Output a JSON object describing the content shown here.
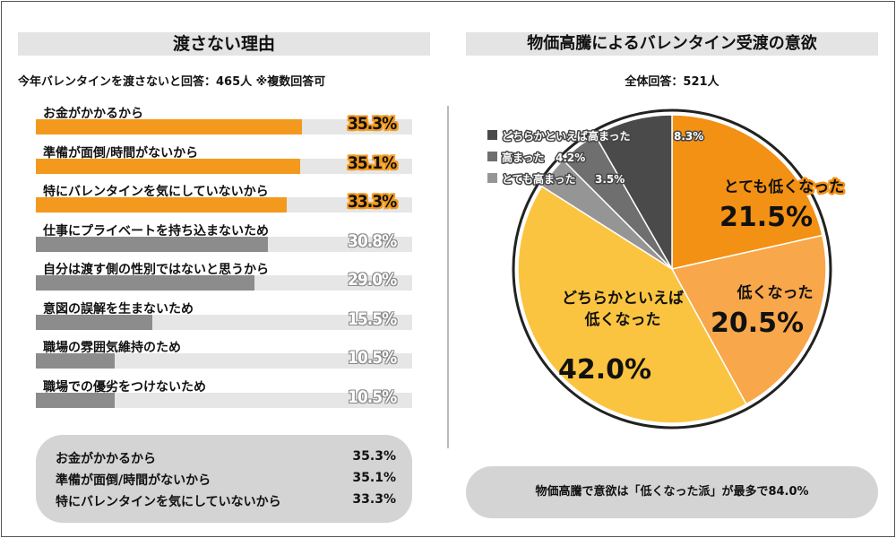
{
  "left": {
    "title": "渡さない理由",
    "subtitle": "今年バレンタインを渡さないと回答：465人 ※複数回答可"
  },
  "right": {
    "title": "物価高騰によるバレンタイン受渡の意欲",
    "subtitle": "全体回答：521人"
  },
  "colors": {
    "orange": "#f39a1e",
    "bar_gray": "#8c8c8c",
    "track": "#e6e6e6",
    "pie_orange": "#f39114",
    "pie_light_orange": "#f8a74a",
    "pie_yellow": "#fbc440",
    "pie_dark": "#4a4a4a",
    "pie_mid": "#6f6f6f",
    "pie_light": "#959595"
  },
  "chart_data": [
    {
      "type": "bar",
      "categories": [
        "お金がかかるから",
        "準備が面倒/時間がないから",
        "特にバレンタインを気にしていないから",
        "仕事にプライベートを持ち込まないため",
        "自分は渡す側の性別ではないと思うから",
        "意図の誤解を生まないため",
        "職場の雰囲気維持のため",
        "職場での優劣をつけないため"
      ],
      "values": [
        35.3,
        35.1,
        33.3,
        30.8,
        29.0,
        15.5,
        10.5,
        10.5
      ],
      "value_labels": [
        "35.3%",
        "35.1%",
        "33.3%",
        "30.8%",
        "29.0%",
        "15.5%",
        "10.5%",
        "10.5%"
      ],
      "xlim": [
        0,
        50
      ],
      "orientation": "horizontal"
    },
    {
      "type": "pie",
      "labels": [
        "とても低くなった",
        "低くなった",
        "どちらかといえば\n低くなった",
        "とても高まった",
        "高まった",
        "どちらかといえば高まった"
      ],
      "values": [
        21.5,
        20.5,
        42.0,
        3.5,
        4.2,
        8.3
      ],
      "value_labels": [
        "21.5%",
        "20.5%",
        "42.0%",
        "3.5%",
        "4.2%",
        "8.3%"
      ],
      "legend": [
        "どちらかといえば高まった",
        "高まった",
        "とても高まった"
      ]
    }
  ],
  "summary": [
    {
      "label": "お金がかかるから",
      "value": "35.3%"
    },
    {
      "label": "準備が面倒/時間がないから",
      "value": "35.1%"
    },
    {
      "label": "特にバレンタインを気にしていないから",
      "value": "33.3%"
    }
  ],
  "note": "物価高騰で意欲は「低くなった派」が最多で84.0%"
}
